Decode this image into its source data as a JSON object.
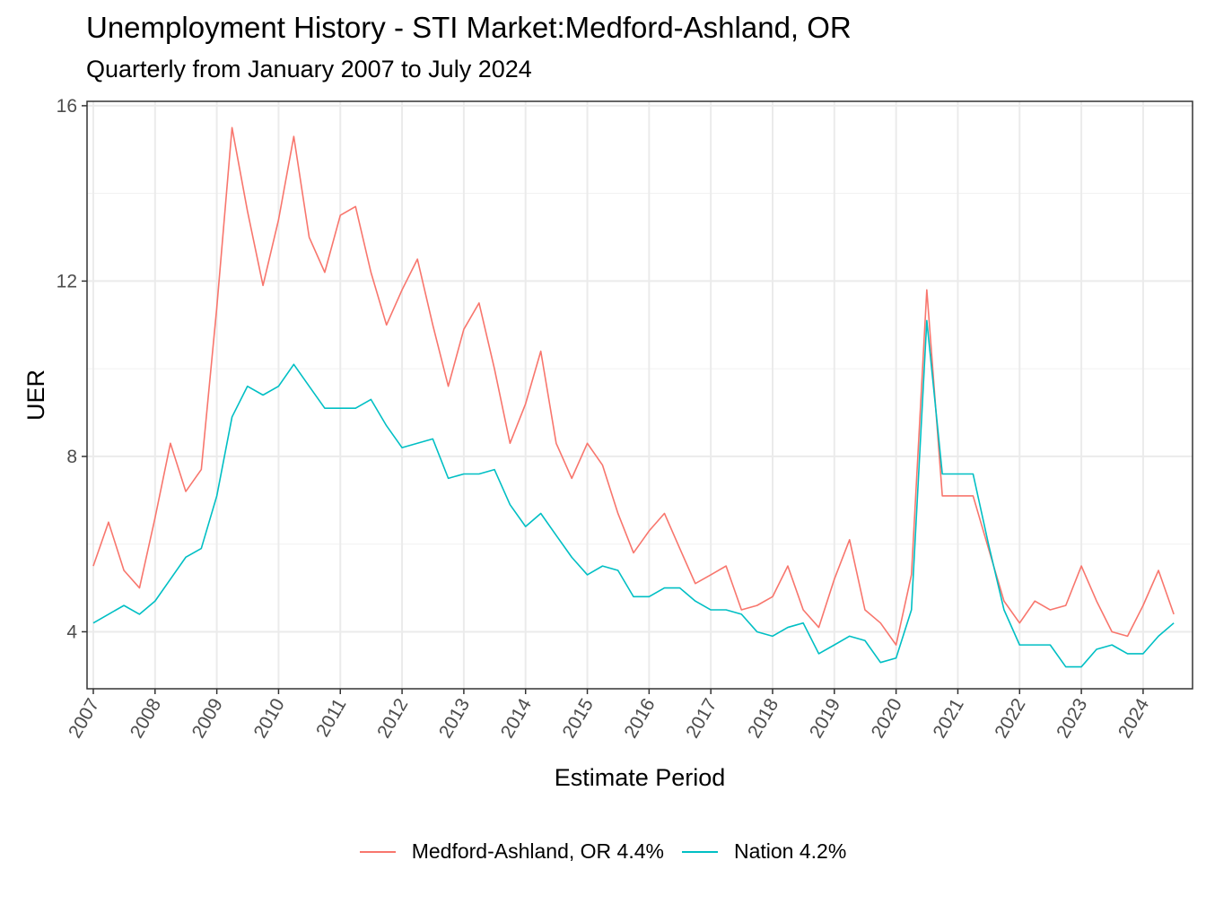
{
  "chart_data": {
    "type": "line",
    "title": "Unemployment History - STI Market:Medford-Ashland, OR",
    "subtitle": "Quarterly from January 2007 to July 2024",
    "xlabel": "Estimate Period",
    "ylabel": "UER",
    "ylim": [
      2.7,
      16.1
    ],
    "xlim": [
      "2006-11-25",
      "2024-10-20"
    ],
    "y_ticks": [
      4,
      8,
      12,
      16
    ],
    "x_ticks": [
      "2007",
      "2008",
      "2009",
      "2010",
      "2011",
      "2012",
      "2013",
      "2014",
      "2015",
      "2016",
      "2017",
      "2018",
      "2019",
      "2020",
      "2021",
      "2022",
      "2023",
      "2024"
    ],
    "grid": true,
    "legend_position": "bottom",
    "x": [
      "2007-01",
      "2007-04",
      "2007-07",
      "2007-10",
      "2008-01",
      "2008-04",
      "2008-07",
      "2008-10",
      "2009-01",
      "2009-04",
      "2009-07",
      "2009-10",
      "2010-01",
      "2010-04",
      "2010-07",
      "2010-10",
      "2011-01",
      "2011-04",
      "2011-07",
      "2011-10",
      "2012-01",
      "2012-04",
      "2012-07",
      "2012-10",
      "2013-01",
      "2013-04",
      "2013-07",
      "2013-10",
      "2014-01",
      "2014-04",
      "2014-07",
      "2014-10",
      "2015-01",
      "2015-04",
      "2015-07",
      "2015-10",
      "2016-01",
      "2016-04",
      "2016-07",
      "2016-10",
      "2017-01",
      "2017-04",
      "2017-07",
      "2017-10",
      "2018-01",
      "2018-04",
      "2018-07",
      "2018-10",
      "2019-01",
      "2019-04",
      "2019-07",
      "2019-10",
      "2020-01",
      "2020-04",
      "2020-07",
      "2020-10",
      "2021-01",
      "2021-04",
      "2021-07",
      "2021-10",
      "2022-01",
      "2022-04",
      "2022-07",
      "2022-10",
      "2023-01",
      "2023-04",
      "2023-07",
      "2023-10",
      "2024-01",
      "2024-04",
      "2024-07"
    ],
    "series": [
      {
        "name": "Medford-Ashland, OR 4.4%",
        "color": "#F8766D",
        "values": [
          5.5,
          6.5,
          5.4,
          5.0,
          6.6,
          8.3,
          7.2,
          7.7,
          11.4,
          15.5,
          13.6,
          11.9,
          13.4,
          15.3,
          13.0,
          12.2,
          13.5,
          13.7,
          12.2,
          11.0,
          11.8,
          12.5,
          11.0,
          9.6,
          10.9,
          11.5,
          10.0,
          8.3,
          9.2,
          10.4,
          8.3,
          7.5,
          8.3,
          7.8,
          6.7,
          5.8,
          6.3,
          6.7,
          5.9,
          5.1,
          5.3,
          5.5,
          4.5,
          4.6,
          4.8,
          5.5,
          4.5,
          4.1,
          5.2,
          6.1,
          4.5,
          4.2,
          3.7,
          5.3,
          11.8,
          7.1,
          7.1,
          7.1,
          5.9,
          4.7,
          4.2,
          4.7,
          4.5,
          4.6,
          5.5,
          4.7,
          4.0,
          3.9,
          4.6,
          5.4,
          4.4
        ]
      },
      {
        "name": "Nation 4.2%",
        "color": "#00BFC4",
        "values": [
          4.2,
          4.4,
          4.6,
          4.4,
          4.7,
          5.2,
          5.7,
          5.9,
          7.1,
          8.9,
          9.6,
          9.4,
          9.6,
          10.1,
          9.6,
          9.1,
          9.1,
          9.1,
          9.3,
          8.7,
          8.2,
          8.3,
          8.4,
          7.5,
          7.6,
          7.6,
          7.7,
          6.9,
          6.4,
          6.7,
          6.2,
          5.7,
          5.3,
          5.5,
          5.4,
          4.8,
          4.8,
          5.0,
          5.0,
          4.7,
          4.5,
          4.5,
          4.4,
          4.0,
          3.9,
          4.1,
          4.2,
          3.5,
          3.7,
          3.9,
          3.8,
          3.3,
          3.4,
          4.5,
          11.1,
          7.6,
          7.6,
          7.6,
          6.0,
          4.5,
          3.7,
          3.7,
          3.7,
          3.2,
          3.2,
          3.6,
          3.7,
          3.5,
          3.5,
          3.9,
          4.2
        ]
      }
    ]
  }
}
